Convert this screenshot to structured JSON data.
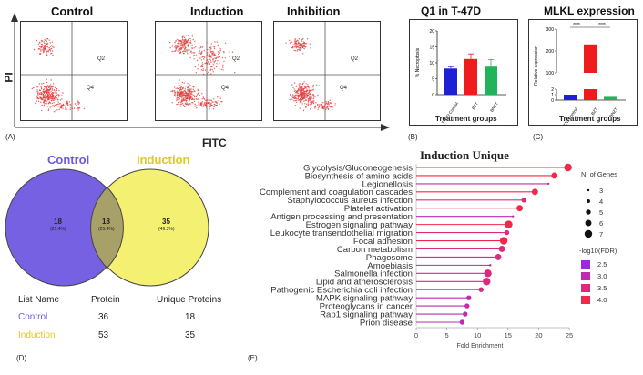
{
  "facs": {
    "panels": [
      {
        "title": "Control",
        "q2": "Q2",
        "q4": "Q4"
      },
      {
        "title": "Induction",
        "q2": "Q2",
        "q4": "Q4"
      },
      {
        "title": "Inhibition",
        "q2": "Q2",
        "q4": "Q4"
      }
    ],
    "ylabel": "PI",
    "xlabel": "FITC",
    "letter": "(A)",
    "dot_color": "#e63b3b"
  },
  "chart_data": [
    {
      "type": "bar",
      "title": "Q1 in T-47D",
      "categories": [
        "T-47D Control",
        "BZT",
        "BNZT"
      ],
      "values": [
        8.2,
        11.2,
        8.8
      ],
      "errors": [
        0.6,
        1.6,
        2.2
      ],
      "colors": [
        "#1f1fd6",
        "#ee1c1c",
        "#22b35a"
      ],
      "xlabel": "Treatment groups",
      "ylabel": "% Necroptosis",
      "ylim": [
        0,
        20
      ],
      "yticks": [
        "0",
        "5",
        "10",
        "15",
        "20"
      ],
      "letter": "(B)"
    },
    {
      "type": "bar",
      "title": "MLKL expression",
      "categories": [
        "T-47D Control",
        "BZT",
        "BNZT"
      ],
      "values": [
        1.0,
        230,
        0.6
      ],
      "colors": [
        "#1f1fd6",
        "#ee1c1c",
        "#22b35a"
      ],
      "xlabel": "Treatment groups",
      "ylabel": "Relative expression",
      "yticks": [
        "0",
        "1",
        "2",
        "100",
        "200",
        "300"
      ],
      "sig": "****",
      "letter": "(C)"
    },
    {
      "type": "venn",
      "sets": [
        {
          "name": "Control",
          "color": "#6f58e0"
        },
        {
          "name": "Induction",
          "color": "#e6d21f"
        }
      ],
      "regions": [
        {
          "count": "18",
          "pct": "(25.4%)"
        },
        {
          "count": "18",
          "pct": "(25.4%)"
        },
        {
          "count": "35",
          "pct": "(49.3%)"
        }
      ],
      "table": {
        "headers": [
          "List Name",
          "Protein",
          "Unique Proteins"
        ],
        "rows": [
          {
            "name": "Control",
            "protein": "36",
            "unique": "18"
          },
          {
            "name": "Induction",
            "protein": "53",
            "unique": "35"
          }
        ]
      },
      "letter": "(D)"
    },
    {
      "type": "scatter",
      "title": "Induction Unique",
      "xlabel": "Fold Enrichment",
      "xlim": [
        0,
        25
      ],
      "xticks": [
        0,
        5,
        10,
        15,
        20,
        25
      ],
      "categories": [
        "Glycolysis/Gluconeogenesis",
        "Biosynthesis of amino acids",
        "Legionellosis",
        "Complement and coagulation cascades",
        "Staphylococcus aureus infection",
        "Platelet activation",
        "Antigen processing and presentation",
        "Estrogen signaling pathway",
        "Leukocyte transendothelial migration",
        "Focal adhesion",
        "Carbon metabolism",
        "Phagosome",
        "Amoebiasis",
        "Salmonella infection",
        "Lipid and atherosclerosis",
        "Pathogenic Escherichia coli infection",
        "MAPK signaling pathway",
        "Proteoglycans in cancer",
        "Rap1 signaling pathway",
        "Prion disease"
      ],
      "values": [
        24.8,
        22.6,
        21.6,
        19.4,
        17.6,
        16.9,
        15.8,
        15.1,
        14.8,
        14.3,
        14.0,
        13.4,
        12.1,
        11.7,
        11.5,
        10.6,
        8.6,
        8.3,
        8.0,
        7.5
      ],
      "genes": [
        7,
        6,
        3,
        6,
        5,
        6,
        3,
        7,
        5,
        7,
        6,
        6,
        3,
        7,
        7,
        5,
        5,
        5,
        5,
        5
      ],
      "neglog10fdr": [
        4.0,
        3.8,
        3.0,
        3.8,
        3.5,
        3.8,
        2.9,
        3.9,
        3.4,
        3.9,
        3.6,
        3.6,
        2.6,
        3.7,
        3.7,
        3.3,
        3.2,
        3.1,
        3.1,
        3.0
      ],
      "legend_size_title": "N. of Genes",
      "legend_sizes": [
        "3",
        "4",
        "5",
        "6",
        "7"
      ],
      "legend_color_title": "-log10(FDR)",
      "legend_colors": [
        "2.5",
        "3.0",
        "3.5",
        "4.0"
      ],
      "legend_color_hex": [
        "#9b2bd6",
        "#c02ab0",
        "#de2a7e",
        "#f0284a"
      ],
      "letter": "(E)"
    }
  ]
}
